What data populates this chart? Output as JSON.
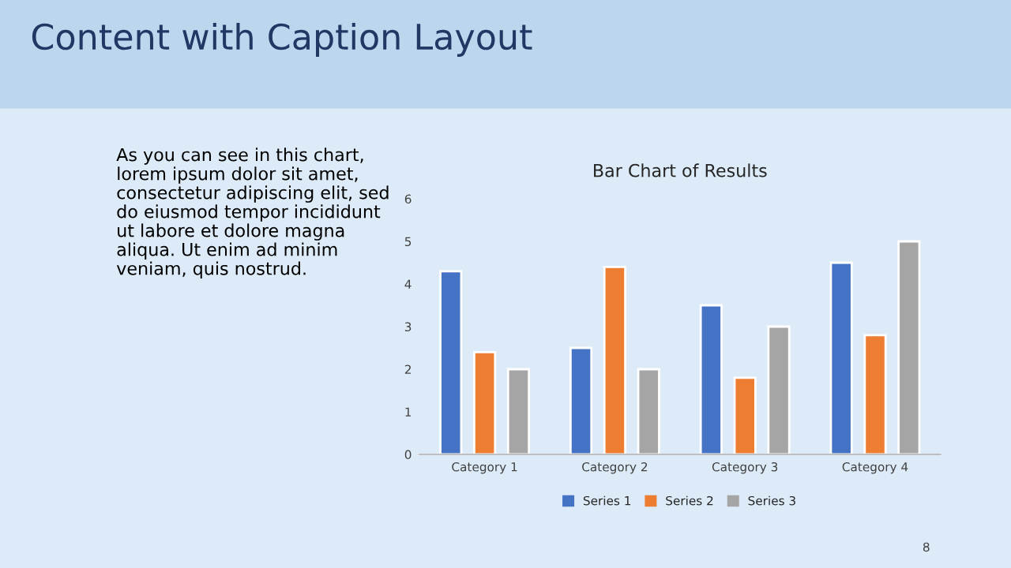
{
  "chart_data": {
    "type": "bar",
    "title": "Bar Chart of Results",
    "categories": [
      "Category 1",
      "Category 2",
      "Category 3",
      "Category 4"
    ],
    "series": [
      {
        "name": "Series 1",
        "color": "#4472c4",
        "values": [
          4.3,
          2.5,
          3.5,
          4.5
        ]
      },
      {
        "name": "Series 2",
        "color": "#ed7d31",
        "values": [
          2.4,
          4.4,
          1.8,
          2.8
        ]
      },
      {
        "name": "Series 3",
        "color": "#a5a5a5",
        "values": [
          2,
          2,
          3,
          5
        ]
      }
    ],
    "ylim": [
      0,
      6
    ],
    "yticks": [
      0,
      1,
      2,
      3,
      4,
      5,
      6
    ],
    "grid": false,
    "legend": "bottom",
    "annotations": [
      "Content with Caption Layout",
      "As you can see in this chart,\nlorem ipsum dolor sit amet,\nconsectetur adipiscing elit, sed\ndo eiusmod tempor incididunt\nut labore et dolore magna\naliqua. Ut enim ad minim\nveniam, quis nostrud.",
      "8"
    ]
  }
}
